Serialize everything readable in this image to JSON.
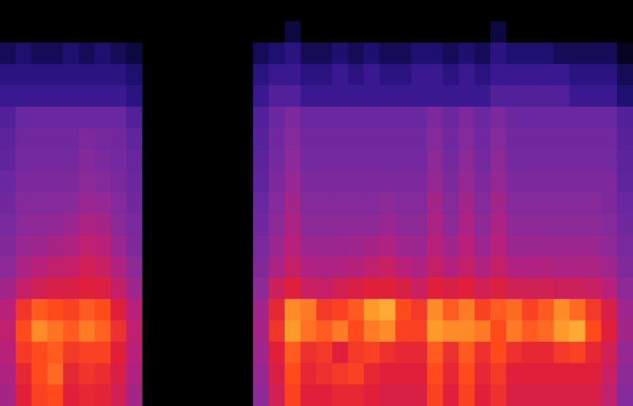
{
  "chart_data": {
    "type": "heatmap",
    "tick_labels": false,
    "color_range": [
      0,
      10
    ],
    "cells": [
      [
        0,
        0,
        0,
        0,
        0,
        0,
        0,
        0,
        0,
        0,
        0,
        0,
        0,
        0,
        0,
        0,
        0,
        0,
        0,
        0,
        0,
        0,
        0,
        0,
        0,
        0,
        0,
        0,
        0,
        0,
        0,
        0,
        0,
        0,
        0,
        0,
        0,
        0,
        0,
        0
      ],
      [
        0,
        0,
        0,
        0,
        0,
        0,
        0,
        0,
        0,
        0,
        0,
        0,
        0,
        0,
        0,
        0,
        0,
        0,
        1,
        0,
        0,
        0,
        0,
        0,
        0,
        0,
        0,
        0,
        0,
        0,
        0,
        1,
        0,
        0,
        0,
        0,
        0,
        0,
        0,
        0
      ],
      [
        1.5,
        2,
        1.5,
        1.5,
        2,
        1.5,
        2,
        1.5,
        1,
        0,
        0,
        0,
        0,
        0,
        0,
        0,
        1.5,
        2,
        2.5,
        1.5,
        1.5,
        2,
        1.5,
        2,
        1.5,
        1.5,
        2,
        2,
        1.5,
        2,
        1.5,
        2.5,
        2,
        2,
        2,
        1.5,
        1.5,
        1.5,
        1.5,
        0.5
      ],
      [
        2.5,
        2.5,
        2.5,
        2.5,
        2.5,
        2.5,
        2.5,
        2.5,
        2,
        0,
        0,
        0,
        0,
        0,
        0,
        0,
        2.5,
        3,
        3,
        2.5,
        2.5,
        3,
        2.5,
        3,
        2.5,
        2.5,
        3,
        3,
        2.5,
        3,
        2.5,
        3,
        3,
        3,
        3,
        3,
        2.5,
        2.5,
        2.5,
        1.5
      ],
      [
        3,
        3,
        3,
        3,
        3,
        3,
        3,
        3,
        2.5,
        0,
        0,
        0,
        0,
        0,
        0,
        0,
        3,
        3.5,
        3.5,
        3,
        3,
        3,
        3,
        3,
        3,
        3,
        3,
        3,
        3,
        3,
        3,
        3.5,
        3.5,
        3.5,
        3.5,
        3.5,
        3,
        3,
        3,
        2
      ],
      [
        3.5,
        4,
        4,
        4,
        4,
        4,
        4,
        4,
        3.5,
        0,
        0,
        0,
        0,
        0,
        0,
        0,
        3.5,
        4,
        4.5,
        4,
        4,
        4,
        4,
        4,
        4,
        4,
        4,
        4.5,
        4,
        4.5,
        4,
        4.5,
        4,
        4,
        4,
        4,
        4,
        4,
        4,
        3.5
      ],
      [
        3.7,
        4.2,
        4.2,
        4.2,
        4.2,
        4.6,
        4.3,
        4.2,
        3.8,
        0,
        0,
        0,
        0,
        0,
        0,
        0,
        3.6,
        4.2,
        4.8,
        4.2,
        4.2,
        4.2,
        4.2,
        4.2,
        4.2,
        4.2,
        4.2,
        4.8,
        4.2,
        4.8,
        4.2,
        4.8,
        4.2,
        4.2,
        4.2,
        4.2,
        4.2,
        4.2,
        4.2,
        3.6
      ],
      [
        3.8,
        4.3,
        4.3,
        4.3,
        4.3,
        4.8,
        4.5,
        4.3,
        3.9,
        0,
        0,
        0,
        0,
        0,
        0,
        0,
        3.7,
        4.3,
        5,
        4.3,
        4.3,
        4.3,
        4.3,
        4.3,
        4.3,
        4.3,
        4.3,
        5,
        4.3,
        5,
        4.3,
        5,
        4.3,
        4.3,
        4.3,
        4.3,
        4.3,
        4.3,
        4.3,
        3.7
      ],
      [
        4,
        4.5,
        4.5,
        4.5,
        4.6,
        5,
        4.8,
        4.5,
        4,
        0,
        0,
        0,
        0,
        0,
        0,
        0,
        3.8,
        4.5,
        5.2,
        4.5,
        4.5,
        4.5,
        4.5,
        4.5,
        4.6,
        4.5,
        4.5,
        5.2,
        4.5,
        5.2,
        4.5,
        5.2,
        4.5,
        4.5,
        4.5,
        4.5,
        4.5,
        4.5,
        4.5,
        3.8
      ],
      [
        4.2,
        4.8,
        4.8,
        4.8,
        4.9,
        5.3,
        5.2,
        4.8,
        4.2,
        0,
        0,
        0,
        0,
        0,
        0,
        0,
        4,
        4.8,
        5.5,
        4.8,
        4.8,
        4.8,
        4.8,
        4.8,
        5,
        4.8,
        4.8,
        5.5,
        4.8,
        5.5,
        4.8,
        5.5,
        4.8,
        4.8,
        4.8,
        4.8,
        4.8,
        4.8,
        4.6,
        4
      ],
      [
        4.4,
        5,
        5,
        5.1,
        5.3,
        5.7,
        5.6,
        5,
        4.4,
        0,
        0,
        0,
        0,
        0,
        0,
        0,
        4.2,
        5,
        5.7,
        5,
        5,
        5,
        5,
        5,
        5.3,
        5,
        5,
        5.7,
        5,
        5.7,
        5,
        5.7,
        5,
        5,
        5,
        5,
        5,
        5,
        4.8,
        4.2
      ],
      [
        4.7,
        5.3,
        5.4,
        5.6,
        5.8,
        6.2,
        6,
        5.3,
        4.6,
        0,
        0,
        0,
        0,
        0,
        0,
        0,
        4.4,
        5.3,
        6,
        5.3,
        5.3,
        5.3,
        5.4,
        5.6,
        5.8,
        5.4,
        5.3,
        6,
        5.4,
        6,
        5.3,
        6,
        5.3,
        5.3,
        5.3,
        5.3,
        5.3,
        5.3,
        5,
        4.4
      ],
      [
        5,
        5.7,
        6,
        6.2,
        6.3,
        6.6,
        6.4,
        5.8,
        5,
        0,
        0,
        0,
        0,
        0,
        0,
        0,
        4.7,
        5.7,
        6.3,
        5.8,
        5.7,
        5.8,
        5.9,
        6.2,
        6.4,
        6,
        5.8,
        6.3,
        5.9,
        6.3,
        5.8,
        6.3,
        5.8,
        5.8,
        5.8,
        5.7,
        5.7,
        5.7,
        5.4,
        4.7
      ],
      [
        5.5,
        6.3,
        6.6,
        6.8,
        6.8,
        7,
        6.9,
        6.3,
        5.4,
        0,
        0,
        0,
        0,
        0,
        0,
        0,
        5,
        6.5,
        7,
        6.4,
        6.3,
        6.6,
        6.8,
        7,
        7,
        6.8,
        6.4,
        7,
        6.8,
        7,
        6.6,
        6.9,
        6.6,
        6.6,
        6.6,
        6.5,
        6.5,
        6.4,
        6,
        5
      ],
      [
        6,
        7.5,
        8.2,
        8,
        7.8,
        8.2,
        8,
        7,
        6,
        0,
        0,
        0,
        0,
        0,
        0,
        0,
        5.5,
        7.2,
        8.8,
        8.6,
        7.6,
        7.8,
        8.2,
        9,
        9.2,
        8,
        7.6,
        8.8,
        8.2,
        8.6,
        7.8,
        8.2,
        8.4,
        7.8,
        8.2,
        8.8,
        8.4,
        7.6,
        6.8,
        5.4
      ],
      [
        6.2,
        8,
        8.8,
        8.5,
        8.2,
        8.6,
        8.3,
        7.4,
        6.2,
        0,
        0,
        0,
        0,
        0,
        0,
        0,
        5.6,
        7.5,
        9,
        8.5,
        8.2,
        8.6,
        8,
        8.6,
        8.8,
        7.8,
        7.8,
        9,
        8.8,
        8.8,
        8.6,
        8,
        8.6,
        8.2,
        8.4,
        9,
        9.2,
        8,
        7,
        5.5
      ],
      [
        6,
        7.6,
        8,
        8.2,
        7.6,
        7.8,
        7.8,
        7,
        6,
        0,
        0,
        0,
        0,
        0,
        0,
        0,
        5.4,
        7,
        8.2,
        7.4,
        7.6,
        7,
        7.6,
        7.8,
        7.4,
        7.2,
        7.2,
        8.2,
        7.4,
        8.2,
        7.4,
        8,
        7.4,
        7.2,
        7.2,
        7.6,
        7.8,
        7.2,
        6.6,
        5.2
      ],
      [
        5.8,
        7.2,
        8,
        8.4,
        7.2,
        7.5,
        7.3,
        6.8,
        5.8,
        0,
        0,
        0,
        0,
        0,
        0,
        0,
        5.2,
        6.8,
        8,
        7.2,
        7.4,
        7.6,
        7.8,
        7.2,
        7,
        7,
        7,
        8,
        7.2,
        8,
        7.2,
        7.6,
        7,
        7,
        7,
        7,
        7,
        7,
        6.4,
        5
      ],
      [
        5.6,
        7,
        7.8,
        8,
        7,
        7.2,
        7.1,
        6.6,
        5.6,
        0,
        0,
        0,
        0,
        0,
        0,
        0,
        5,
        6.6,
        7.8,
        7,
        7,
        7.2,
        7.2,
        7,
        6.8,
        6.8,
        6.8,
        7.8,
        7,
        7.8,
        7,
        7.4,
        6.8,
        6.8,
        6.8,
        6.8,
        6.8,
        6.8,
        6.2,
        4.8
      ]
    ]
  }
}
